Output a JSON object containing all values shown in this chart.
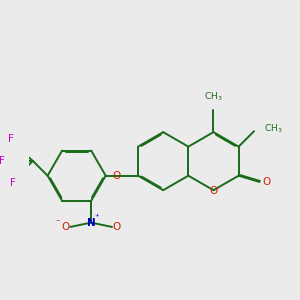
{
  "bg_color": "#ebebeb",
  "bond_color": "#1a6b1a",
  "o_color": "#cc2200",
  "n_color": "#0000cc",
  "f_color": "#cc00cc",
  "lw": 1.4,
  "dbo": 0.018,
  "figsize": [
    3.0,
    3.0
  ],
  "dpi": 100,
  "xlim": [
    -1.6,
    3.2
  ],
  "ylim": [
    -1.5,
    2.5
  ]
}
